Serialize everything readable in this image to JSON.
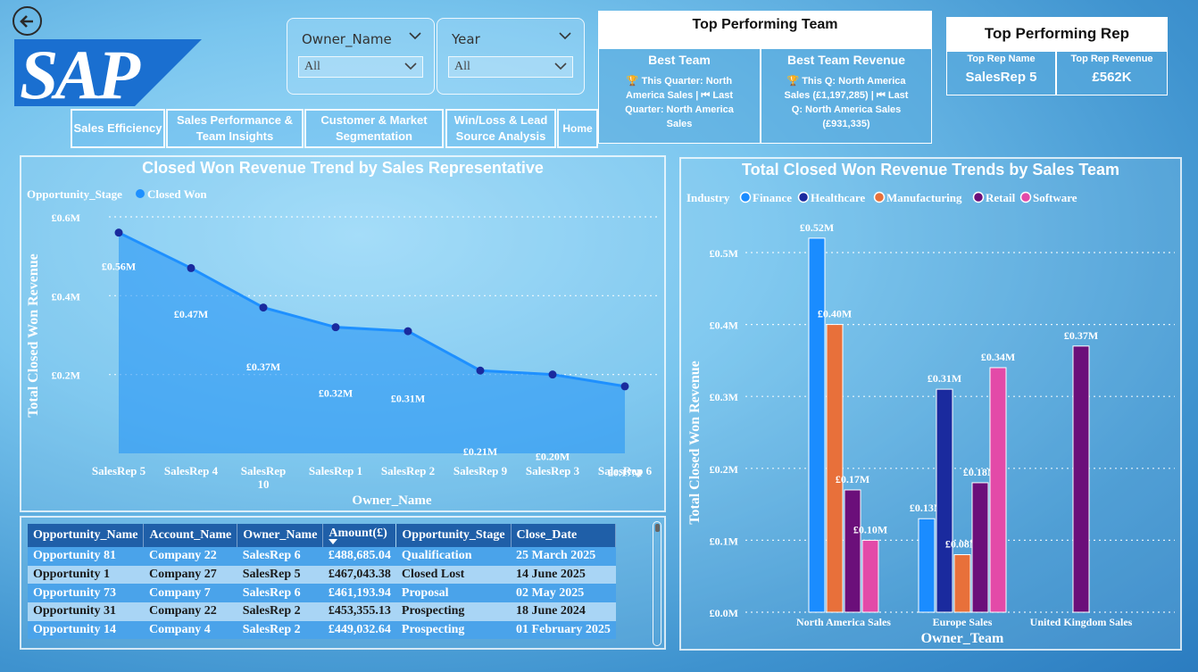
{
  "slicers": [
    {
      "title": "Owner_Name",
      "value": "All"
    },
    {
      "title": "Year",
      "value": "All"
    }
  ],
  "nav": {
    "sales_efficiency": "Sales Efficiency",
    "sales_performance_line1": "Sales Performance &",
    "sales_performance_line2": "Team Insights",
    "customer_market_line1": "Customer & Market",
    "customer_market_line2": "Segmentation",
    "winloss_line1": "Win/Loss & Lead",
    "winloss_line2": "Source Analysis",
    "home": "Home"
  },
  "top_team": {
    "title": "Top Performing Team",
    "best_team_label": "Best Team",
    "best_team_line1": "🏆 This Quarter: North",
    "best_team_line2": "America Sales | ⏮ Last",
    "best_team_line3": "Quarter: North America",
    "best_team_line4": "Sales",
    "best_revenue_label": "Best Team Revenue",
    "best_revenue_line1": "🏆 This Q: North America",
    "best_revenue_line2": "Sales (£1,197,285) | ⏮ Last",
    "best_revenue_line3": "Q: North America Sales",
    "best_revenue_line4": "(£931,335)"
  },
  "top_rep": {
    "title": "Top Performing Rep",
    "name_label": "Top Rep Name",
    "name_value": "SalesRep 5",
    "revenue_label": "Top Rep Revenue",
    "revenue_value": "£562K"
  },
  "colors": {
    "finance": "#1a8cff",
    "healthcare": "#1a2a9e",
    "manufacturing": "#e8703a",
    "retail": "#6b0f7a",
    "software": "#e34aa8",
    "line": "#1e90ff",
    "point": "#1a2a9e"
  },
  "chart_data": [
    {
      "type": "area",
      "title": "Closed Won Revenue Trend by Sales Representative",
      "xlabel": "Owner_Name",
      "ylabel": "Total Closed Won Revenue",
      "legend_title": "Opportunity_Stage",
      "legend_placement": "top-left",
      "series": [
        {
          "name": "Closed Won",
          "values": [
            0.56,
            0.47,
            0.37,
            0.32,
            0.31,
            0.21,
            0.2,
            0.17
          ]
        }
      ],
      "categories": [
        "SalesRep 5",
        "SalesRep 4",
        "SalesRep 10",
        "SalesRep 1",
        "SalesRep 2",
        "SalesRep 9",
        "SalesRep 3",
        "SalesRep 6"
      ],
      "data_labels": [
        "£0.56M",
        "£0.47M",
        "£0.37M",
        "£0.32M",
        "£0.31M",
        "£0.21M",
        "£0.20M",
        "£0.17M"
      ],
      "yticks": [
        "£0.2M",
        "£0.4M",
        "£0.6M"
      ],
      "ytick_values": [
        0.2,
        0.4,
        0.6
      ],
      "ylim": [
        0.0,
        0.6
      ],
      "grid": true
    },
    {
      "type": "bar",
      "title": "Total Closed Won Revenue Trends by Sales Team",
      "xlabel": "Owner_Team",
      "ylabel": "Total Closed Won Revenue",
      "legend_title": "Industry",
      "legend_placement": "top-left",
      "categories": [
        "North America Sales",
        "Europe Sales",
        "United Kingdom Sales"
      ],
      "series": [
        {
          "name": "Finance",
          "values": [
            0.52,
            0.13,
            null
          ],
          "labels": [
            "£0.52M",
            "£0.13M",
            ""
          ]
        },
        {
          "name": "Healthcare",
          "values": [
            null,
            0.31,
            null
          ],
          "labels": [
            "",
            "£0.31M",
            ""
          ]
        },
        {
          "name": "Manufacturing",
          "values": [
            0.4,
            0.08,
            null
          ],
          "labels": [
            "£0.40M",
            "£0.08M",
            ""
          ]
        },
        {
          "name": "Retail",
          "values": [
            0.17,
            0.18,
            0.37
          ],
          "labels": [
            "£0.17M",
            "£0.18M",
            "£0.37M"
          ]
        },
        {
          "name": "Software",
          "values": [
            0.1,
            0.34,
            null
          ],
          "labels": [
            "£0.10M",
            "£0.34M",
            ""
          ]
        }
      ],
      "yticks": [
        "£0.0M",
        "£0.1M",
        "£0.2M",
        "£0.3M",
        "£0.4M",
        "£0.5M"
      ],
      "ytick_values": [
        0.0,
        0.1,
        0.2,
        0.3,
        0.4,
        0.5
      ],
      "ylim": [
        0.0,
        0.5
      ],
      "grid": true
    }
  ],
  "table": {
    "columns": [
      "Opportunity_Name",
      "Account_Name",
      "Owner_Name",
      "Amount(£)",
      "Opportunity_Stage",
      "Close_Date"
    ],
    "rows": [
      [
        "Opportunity 81",
        "Company 22",
        "SalesRep 6",
        "£488,685.04",
        "Qualification",
        "25 March 2025"
      ],
      [
        "Opportunity 1",
        "Company 27",
        "SalesRep 5",
        "£467,043.38",
        "Closed Lost",
        "14 June 2025"
      ],
      [
        "Opportunity 73",
        "Company 7",
        "SalesRep 6",
        "£461,193.94",
        "Proposal",
        "02 May 2025"
      ],
      [
        "Opportunity 31",
        "Company 22",
        "SalesRep 2",
        "£453,355.13",
        "Prospecting",
        "18 June 2024"
      ],
      [
        "Opportunity 14",
        "Company 4",
        "SalesRep 2",
        "£449,032.64",
        "Prospecting",
        "01 February 2025"
      ]
    ]
  }
}
